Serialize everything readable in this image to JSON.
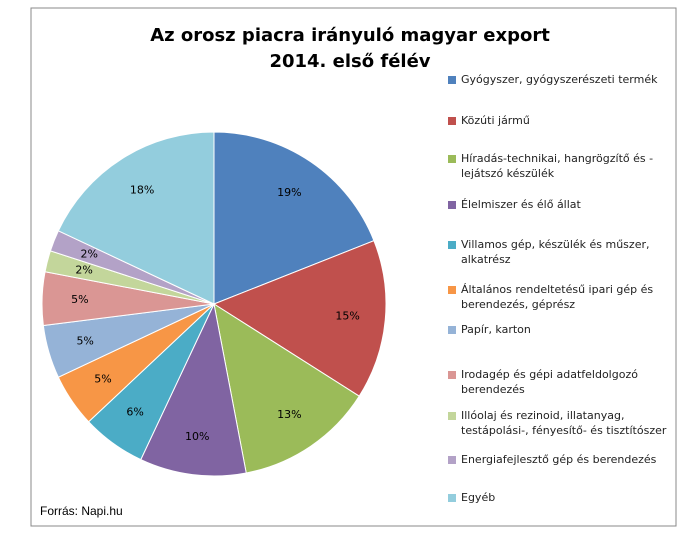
{
  "chart_data": {
    "type": "pie",
    "title": "Az orosz piacra irányuló magyar export",
    "subtitle": "2014. első félév",
    "source": "Forrás: Napi.hu",
    "categories": [
      "Gyógyszer, gyógyszerészeti termék",
      "Közúti jármű",
      "Híradás-technikai, hangrögzítő és -lejátszó készülék",
      "Élelmiszer és élő állat",
      "Villamos gép, készülék és műszer, alkatrész",
      "Általános rendeltetésű ipari gép és berendezés, géprész",
      "Papír, karton",
      "Irodagép és gépi adatfeldolgozó berendezés",
      "Illóolaj és rezinoid, illatanyag, testápolási-, fényesítő- és tisztítószer",
      "Energiafejlesztő gép és berendezés",
      "Egyéb"
    ],
    "values": [
      19,
      15,
      13,
      10,
      6,
      5,
      5,
      5,
      2,
      2,
      18
    ],
    "value_labels": [
      "19%",
      "15%",
      "13%",
      "10%",
      "6%",
      "5%",
      "5%",
      "5%",
      "2%",
      "2%",
      "18%"
    ],
    "colors": [
      "#4f81bd",
      "#c0504d",
      "#9bbb59",
      "#8064a2",
      "#4bacc6",
      "#f79646",
      "#95b3d7",
      "#da9694",
      "#c3d69b",
      "#b3a2c7",
      "#93cddd"
    ],
    "legend": "right"
  }
}
